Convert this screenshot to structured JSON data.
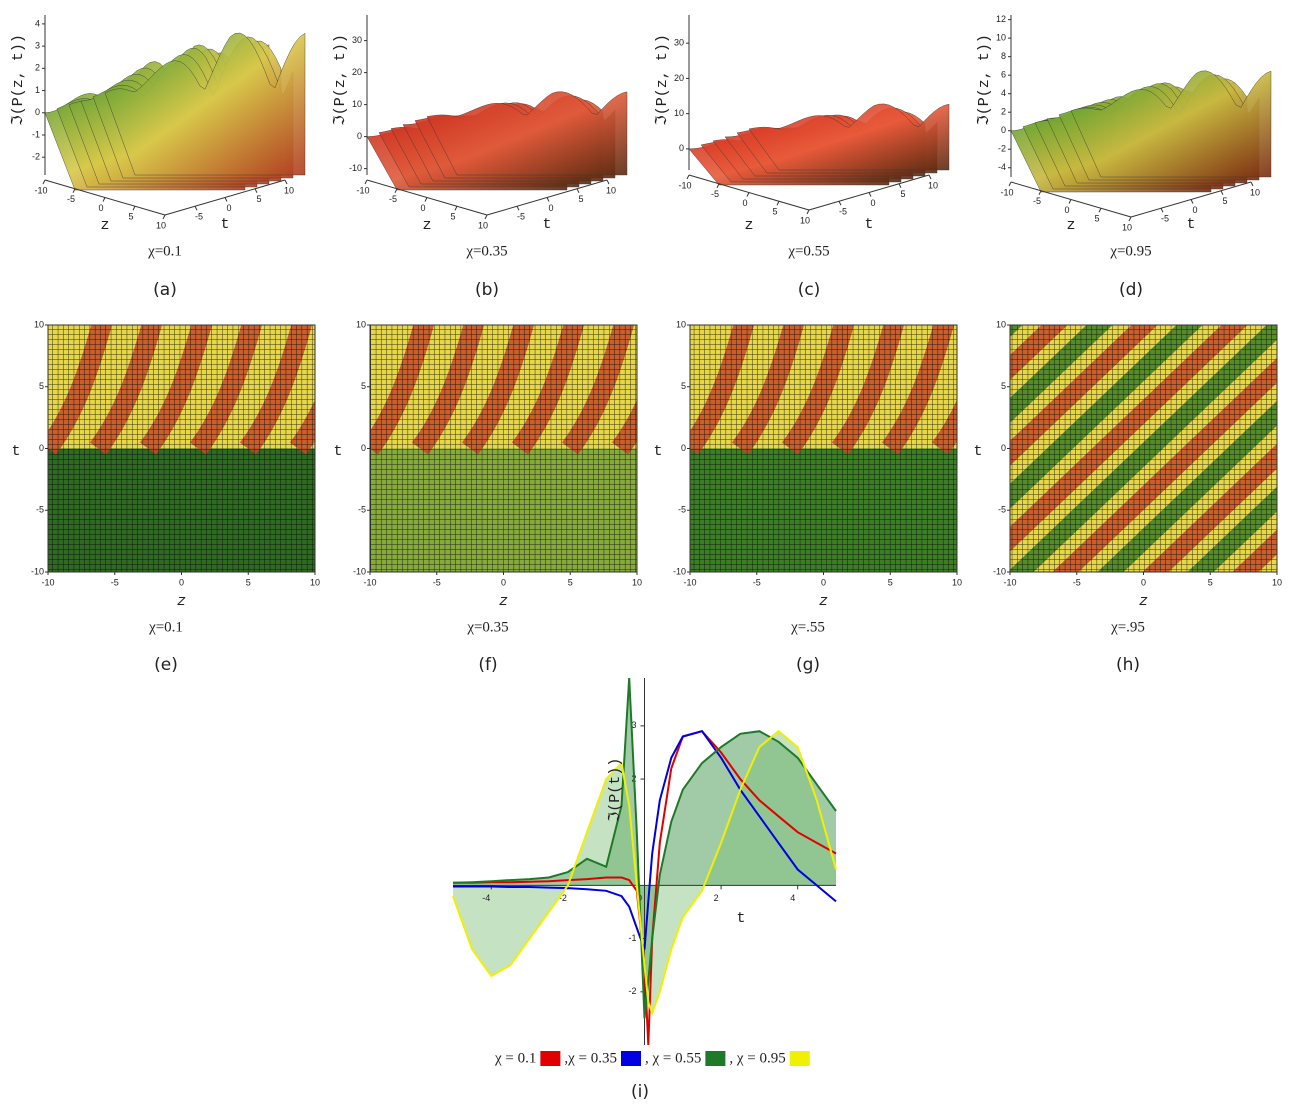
{
  "chart_data": [
    {
      "type": "surface3d",
      "panel": "(a)",
      "parameter_label": "χ=0.1",
      "zlabel": "ℑ(P(z, t))",
      "xlabel": "z",
      "ylabel": "t",
      "xticks": [
        -10,
        -5,
        0,
        5,
        10
      ],
      "yticks": [
        -5,
        0,
        5,
        10
      ],
      "zlim": [
        -2.8,
        4.4
      ],
      "zticks": [
        -2,
        -1,
        0,
        1,
        2,
        3,
        4
      ],
      "colors": [
        "#2f8f2a",
        "#d8c84a",
        "#b03a20"
      ]
    },
    {
      "type": "surface3d",
      "panel": "(b)",
      "parameter_label": "χ=0.35",
      "zlabel": "ℑ(P(z, t))",
      "xlabel": "z",
      "ylabel": "t",
      "xticks": [
        -10,
        -5,
        0,
        5,
        10
      ],
      "yticks": [
        -5,
        0,
        5,
        10
      ],
      "zlim": [
        -12,
        38
      ],
      "zticks": [
        -10,
        0,
        10,
        20,
        30
      ],
      "colors": [
        "#c8281a",
        "#e05a3a",
        "#5a2a10"
      ]
    },
    {
      "type": "surface3d",
      "panel": "(c)",
      "parameter_label": "χ=0.55",
      "zlabel": "ℑ(P(z, t))",
      "xlabel": "z",
      "ylabel": "t",
      "xticks": [
        -10,
        -5,
        0,
        5,
        10
      ],
      "yticks": [
        -5,
        0,
        5,
        10
      ],
      "zlim": [
        -6,
        38
      ],
      "zticks": [
        0,
        10,
        20,
        30
      ],
      "colors": [
        "#d02a1a",
        "#e85a3a",
        "#5a2a10"
      ]
    },
    {
      "type": "surface3d",
      "panel": "(d)",
      "parameter_label": "χ=0.95",
      "zlabel": "ℑ(P(z, t))",
      "xlabel": "z",
      "ylabel": "t",
      "xticks": [
        -10,
        -5,
        0,
        5,
        10
      ],
      "yticks": [
        -5,
        0,
        5,
        10
      ],
      "zlim": [
        -5,
        12.5
      ],
      "zticks": [
        -4,
        -2,
        0,
        2,
        4,
        6,
        8,
        10,
        12
      ],
      "colors": [
        "#3a9a2a",
        "#c8b840",
        "#7a2a10"
      ]
    },
    {
      "type": "density",
      "panel": "(e)",
      "parameter_label": "χ=0.1",
      "xlabel": "z",
      "ylabel": "t",
      "xlim": [
        -10,
        10
      ],
      "ylim": [
        -10,
        10
      ],
      "xticks": [
        -10,
        -5,
        0,
        5,
        10
      ],
      "yticks": [
        -10,
        -5,
        0,
        5,
        10
      ],
      "colors": [
        "#2f6a22",
        "#e6d64a",
        "#c24a28"
      ]
    },
    {
      "type": "density",
      "panel": "(f)",
      "parameter_label": "χ=0.35",
      "xlabel": "z",
      "ylabel": "t",
      "xlim": [
        -10,
        10
      ],
      "ylim": [
        -10,
        10
      ],
      "xticks": [
        -10,
        -5,
        0,
        5,
        10
      ],
      "yticks": [
        -10,
        -5,
        0,
        5,
        10
      ],
      "colors": [
        "#86aa3c",
        "#e6d64a",
        "#c24a28"
      ]
    },
    {
      "type": "density",
      "panel": "(g)",
      "parameter_label": "χ=.55",
      "xlabel": "z",
      "ylabel": "t",
      "xlim": [
        -10,
        10
      ],
      "ylim": [
        -10,
        10
      ],
      "xticks": [
        -10,
        -5,
        0,
        5,
        10
      ],
      "yticks": [
        -10,
        -5,
        0,
        5,
        10
      ],
      "colors": [
        "#3c7e26",
        "#e6d64a",
        "#c24a28"
      ]
    },
    {
      "type": "density-diagonal",
      "panel": "(h)",
      "parameter_label": "χ=.95",
      "xlabel": "z",
      "ylabel": "t",
      "xlim": [
        -10,
        10
      ],
      "ylim": [
        -10,
        10
      ],
      "xticks": [
        -10,
        -5,
        0,
        5,
        10
      ],
      "yticks": [
        -10,
        -5,
        0,
        5,
        10
      ],
      "colors": [
        "#3c7e26",
        "#e6d64a",
        "#c24a28"
      ]
    },
    {
      "type": "line",
      "panel": "(i)",
      "xlabel": "t",
      "ylabel": "ℑ(P(t))",
      "xlim": [
        -5,
        5
      ],
      "ylim": [
        -3,
        3.9
      ],
      "xticks": [
        -4,
        -2,
        0,
        2,
        4
      ],
      "yticks": [
        -2,
        -1,
        2,
        3
      ],
      "x": [
        -5,
        -4.5,
        -4,
        -3.5,
        -3,
        -2.5,
        -2,
        -1.5,
        -1,
        -0.6,
        -0.4,
        -0.2,
        0,
        0.1,
        0.2,
        0.4,
        0.7,
        1,
        1.5,
        2,
        2.5,
        3,
        3.5,
        4,
        4.5,
        5
      ],
      "series": [
        {
          "name": "χ = 0.1",
          "color": "#e00000",
          "values": [
            0.05,
            0.05,
            0.06,
            0.06,
            0.07,
            0.08,
            0.1,
            0.12,
            0.15,
            0.15,
            0.1,
            -0.1,
            -1.5,
            -3.0,
            -1.0,
            0.8,
            2.2,
            2.8,
            2.9,
            2.5,
            2.0,
            1.6,
            1.3,
            1.0,
            0.8,
            0.6
          ]
        },
        {
          "name": ",χ = 0.35",
          "color": "#0000e0",
          "values": [
            -0.02,
            -0.02,
            -0.02,
            -0.03,
            -0.03,
            -0.04,
            -0.05,
            -0.07,
            -0.1,
            -0.2,
            -0.4,
            -0.8,
            -1.2,
            -0.3,
            0.6,
            1.6,
            2.4,
            2.8,
            2.9,
            2.4,
            1.8,
            1.3,
            0.8,
            0.3,
            0,
            -0.3
          ]
        },
        {
          "name": ", χ = 0.55",
          "color": "#1e7a28",
          "fill": "#2e8b3a",
          "values": [
            0.05,
            0.06,
            0.08,
            0.1,
            0.12,
            0.15,
            0.25,
            0.5,
            0.35,
            1.5,
            3.9,
            1.0,
            -2.5,
            -1.8,
            -1.0,
            0.2,
            1.2,
            1.8,
            2.3,
            2.6,
            2.85,
            2.9,
            2.7,
            2.4,
            1.9,
            1.4
          ]
        },
        {
          "name": ", χ = 0.95",
          "color": "#f0f000",
          "fill": "#7fc27a",
          "values": [
            -0.2,
            -1.2,
            -1.7,
            -1.5,
            -1.0,
            -0.5,
            0,
            1.0,
            2.0,
            2.3,
            1.5,
            0,
            -1.5,
            -2.2,
            -2.4,
            -2.0,
            -1.2,
            -0.6,
            -0.1,
            0.8,
            1.8,
            2.6,
            2.9,
            2.6,
            1.6,
            0.3
          ]
        }
      ]
    }
  ]
}
